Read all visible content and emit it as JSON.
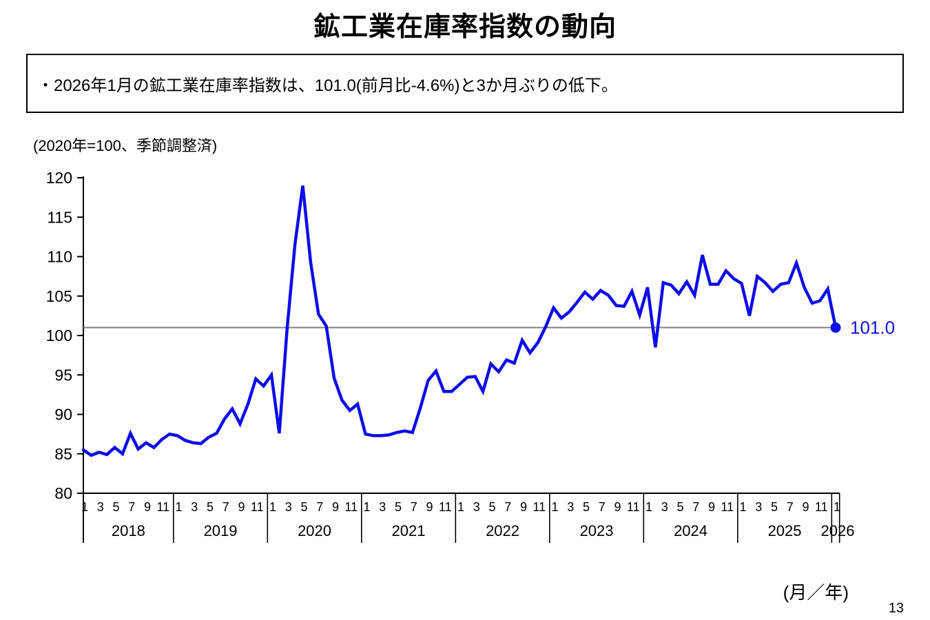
{
  "page": {
    "title": "鉱工業在庫率指数の動向",
    "summary_bullet": "・2026年1月の鉱工業在庫率指数は、101.0(前月比-4.6%)と3か月ぶりの低下。",
    "page_number": "13"
  },
  "chart_data": {
    "type": "line",
    "title": "鉱工業在庫率指数の動向",
    "unit_note": "(2020年=100、季節調整済)",
    "x_unit_label": "(月／年)",
    "ylim": [
      80,
      120
    ],
    "y_ticks": [
      80,
      85,
      90,
      95,
      100,
      105,
      110,
      115,
      120
    ],
    "month_tick_labels": [
      "1",
      "3",
      "5",
      "7",
      "9",
      "11"
    ],
    "years": [
      "2018",
      "2019",
      "2020",
      "2021",
      "2022",
      "2023",
      "2024",
      "2025",
      "2026"
    ],
    "grid": "off",
    "legend": "none",
    "line_color": "#0d0de8",
    "reference_line": {
      "value": 101.0,
      "color": "#7f7f7f"
    },
    "last_point_label": "101.0",
    "last_point_value": 101.0,
    "series": [
      {
        "name": "鉱工業在庫率指数(季節調整済)",
        "start": "2018-01",
        "frequency": "monthly",
        "values": [
          85.5,
          84.8,
          85.2,
          84.9,
          85.8,
          85.0,
          87.6,
          85.6,
          86.4,
          85.8,
          86.8,
          87.5,
          87.3,
          86.7,
          86.4,
          86.3,
          87.1,
          87.6,
          89.4,
          90.7,
          88.8,
          91.3,
          94.5,
          93.6,
          95.0,
          87.6,
          100.9,
          111.5,
          119.0,
          109.3,
          102.7,
          101.2,
          94.6,
          91.8,
          90.5,
          91.3,
          87.5,
          87.3,
          87.3,
          87.4,
          87.7,
          87.9,
          87.7,
          90.8,
          94.3,
          95.5,
          92.9,
          92.9,
          93.8,
          94.7,
          94.8,
          92.9,
          96.4,
          95.4,
          96.9,
          96.5,
          99.4,
          97.8,
          99.1,
          101.1,
          103.5,
          102.2,
          103.0,
          104.2,
          105.5,
          104.6,
          105.7,
          105.1,
          103.8,
          103.7,
          105.6,
          102.6,
          106.1,
          98.5,
          106.7,
          106.4,
          105.3,
          106.8,
          105.1,
          110.2,
          106.5,
          106.5,
          108.2,
          107.2,
          106.6,
          102.5,
          107.5,
          106.7,
          105.6,
          106.5,
          106.7,
          109.2,
          106.1,
          104.1,
          104.4,
          105.9,
          101.0
        ]
      }
    ]
  }
}
